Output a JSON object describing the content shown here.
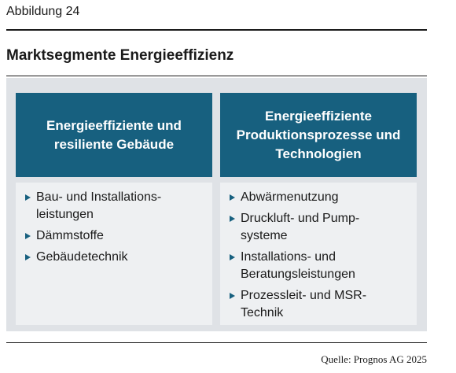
{
  "figure_label": "Abbildung 24",
  "title": "Marktsegmente Energieeffizienz",
  "columns": [
    {
      "heading": "Energieeffiziente und\nresiliente Gebäude",
      "items": [
        "Bau- und Installations-\nleistungen",
        "Dämmstoffe",
        "Gebäudetechnik"
      ]
    },
    {
      "heading": "Energieeffiziente\nProduktionsprozesse und\nTechnologien",
      "items": [
        "Abwärmenutzung",
        "Druckluft- und Pump-\nsysteme",
        "Installations- und\nBeratungsleistungen",
        "Prozessleit- und MSR-\nTechnik"
      ]
    }
  ],
  "source": "Quelle: Prognos AG 2025"
}
